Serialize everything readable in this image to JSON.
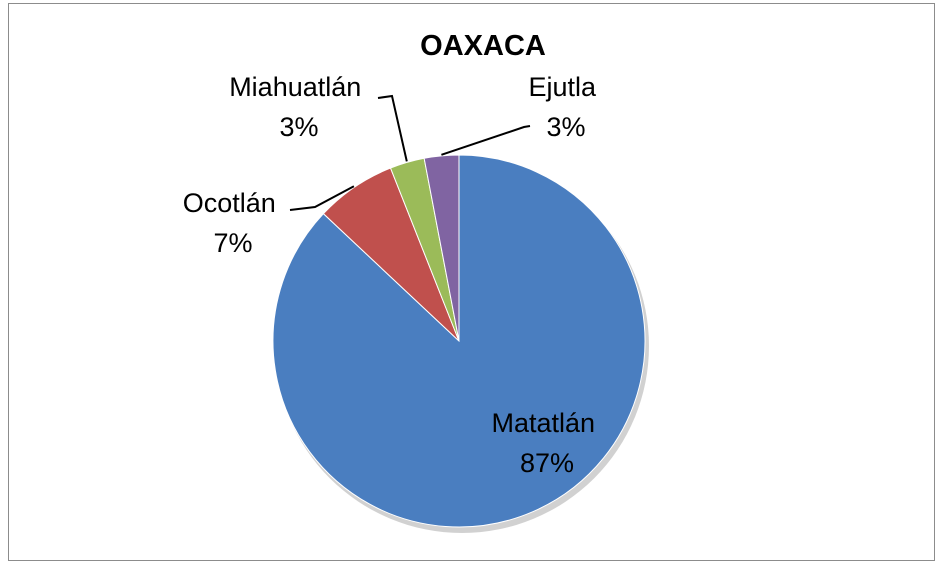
{
  "chart_data": {
    "type": "pie",
    "title": "OAXACA",
    "slices": [
      {
        "label": "Matatlán",
        "value": 87,
        "value_label": "87%",
        "color": "#4A7EC0"
      },
      {
        "label": "Ocotlán",
        "value": 7,
        "value_label": "7%",
        "color": "#C0504D"
      },
      {
        "label": "Miahuatlán",
        "value": 3,
        "value_label": "3%",
        "color": "#9BBB59"
      },
      {
        "label": "Ejutla",
        "value": 3,
        "value_label": "3%",
        "color": "#8064A2"
      }
    ],
    "start": "12 o'clock",
    "direction": "clockwise",
    "legend": "none",
    "data_labels": "category and percent"
  }
}
